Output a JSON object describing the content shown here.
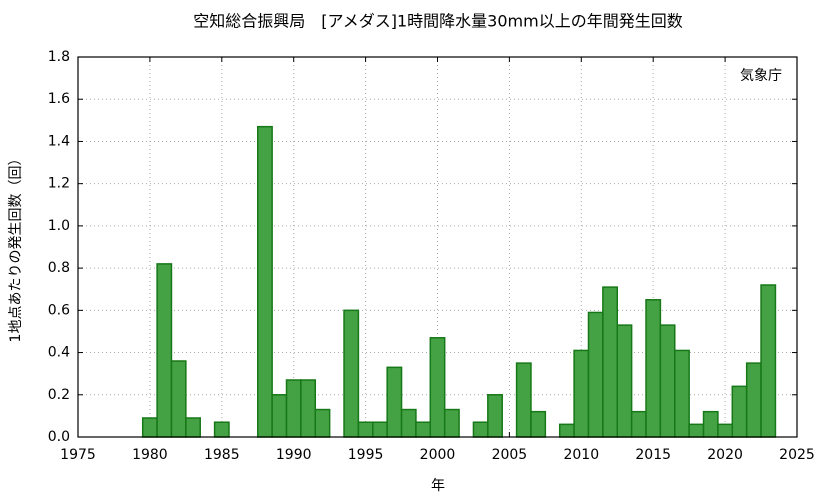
{
  "chart_data": {
    "type": "bar",
    "title": "空知総合振興局　[アメダス]1時間降水量30mm以上の年間発生回数",
    "annotation": "気象庁",
    "x_label": "年",
    "y_label": "1地点あたりの発生回数（回）",
    "color": "#44a244",
    "edge_color": "#177817",
    "grid": true,
    "x": [
      1980,
      1981,
      1982,
      1983,
      1985,
      1988,
      1989,
      1990,
      1991,
      1992,
      1994,
      1995,
      1996,
      1997,
      1998,
      1999,
      2000,
      2001,
      2003,
      2004,
      2006,
      2007,
      2009,
      2010,
      2011,
      2012,
      2013,
      2014,
      2015,
      2016,
      2017,
      2018,
      2019,
      2020,
      2021,
      2022,
      2023
    ],
    "values": [
      0.09,
      0.82,
      0.36,
      0.09,
      0.07,
      1.47,
      0.2,
      0.27,
      0.27,
      0.13,
      0.6,
      0.07,
      0.07,
      0.33,
      0.13,
      0.07,
      0.47,
      0.13,
      0.07,
      0.2,
      0.35,
      0.12,
      0.06,
      0.41,
      0.59,
      0.71,
      0.53,
      0.12,
      0.65,
      0.53,
      0.41,
      0.06,
      0.12,
      0.06,
      0.24,
      0.35,
      0.72
    ],
    "xlim": [
      1975,
      2025
    ],
    "xticks": [
      1975,
      1980,
      1985,
      1990,
      1995,
      2000,
      2005,
      2010,
      2015,
      2020,
      2025
    ],
    "ylim": [
      0,
      1.8
    ],
    "yticks": [
      {
        "value": 0,
        "label": "0.0"
      },
      0.2,
      0.4,
      0.6,
      0.8,
      {
        "value": 1,
        "label": "1.0"
      },
      1.2,
      1.4,
      1.6,
      1.8
    ]
  }
}
